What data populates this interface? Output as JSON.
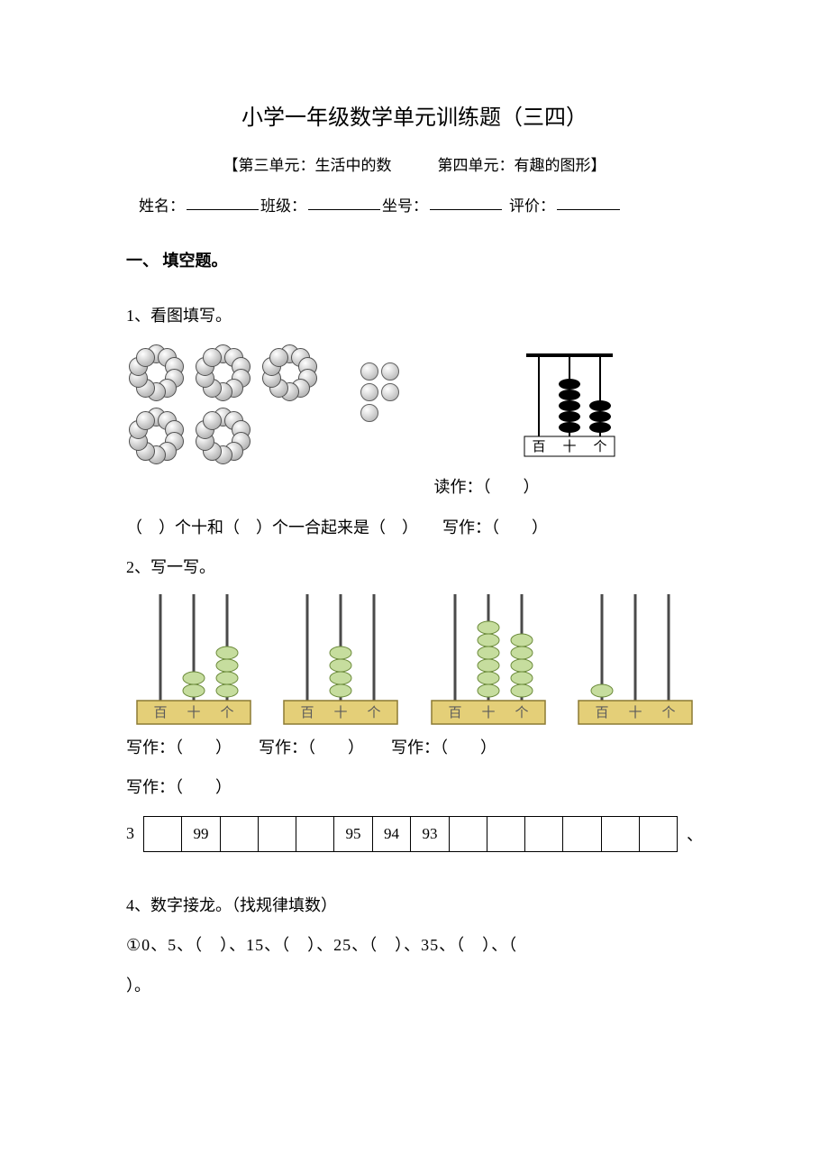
{
  "title": "小学一年级数学单元训练题（三四）",
  "subtitle": "【第三单元：生活中的数　　　第四单元：有趣的图形】",
  "header": {
    "name_label": "姓名：",
    "class_label": "班级：",
    "seat_label": "坐号：",
    "rating_label": "评价："
  },
  "section1_title": "一、 填空题。",
  "q1": {
    "prompt": "1、看图填写。",
    "rings": {
      "ring_count": 5,
      "beads_per_ring": 10,
      "bead_fill_light": "#ffffff",
      "bead_fill_dark": "#a8a8a8",
      "bead_border": "#505050"
    },
    "loose_count": 5,
    "abacus": {
      "columns_labels": [
        "百",
        "十",
        "个"
      ],
      "bead_counts": [
        0,
        5,
        3
      ],
      "bead_color": "#000000",
      "frame_color": "#000000"
    },
    "read_label": "读作：（　　）",
    "fill_line": "（　）个十和（　）个一合起来是（　）　　写作：（　　）"
  },
  "q2": {
    "prompt": "2、写一写。",
    "abaci": [
      {
        "beads": [
          0,
          2,
          4
        ],
        "labels": [
          "百",
          "十",
          "个"
        ]
      },
      {
        "beads": [
          0,
          4,
          0
        ],
        "labels": [
          "百",
          "十",
          "个"
        ]
      },
      {
        "beads": [
          0,
          6,
          5
        ],
        "labels": [
          "百",
          "十",
          "个"
        ]
      },
      {
        "beads": [
          1,
          0,
          0
        ],
        "labels": [
          "百",
          "十",
          "个"
        ]
      }
    ],
    "style": {
      "bead_fill": "#c6dd9e",
      "bead_stroke": "#6b8a3a",
      "base_fill": "#e4cf78",
      "base_stroke": "#8c7a34",
      "rod_color": "#4a4a4a",
      "text_color": "#5b5b5b"
    },
    "write_label": "写作：（　　）"
  },
  "q3": {
    "number_label": "3",
    "trailing": "、",
    "cells": [
      "",
      "99",
      "",
      "",
      "",
      "95",
      "94",
      "93",
      "",
      "",
      "",
      "",
      "",
      ""
    ]
  },
  "q4": {
    "prompt": "4、数字接龙。（找规律填数）",
    "line1": "①0、5、（　）、15、（　）、25、（　）、35、（　）、（",
    "line2": "）。"
  }
}
